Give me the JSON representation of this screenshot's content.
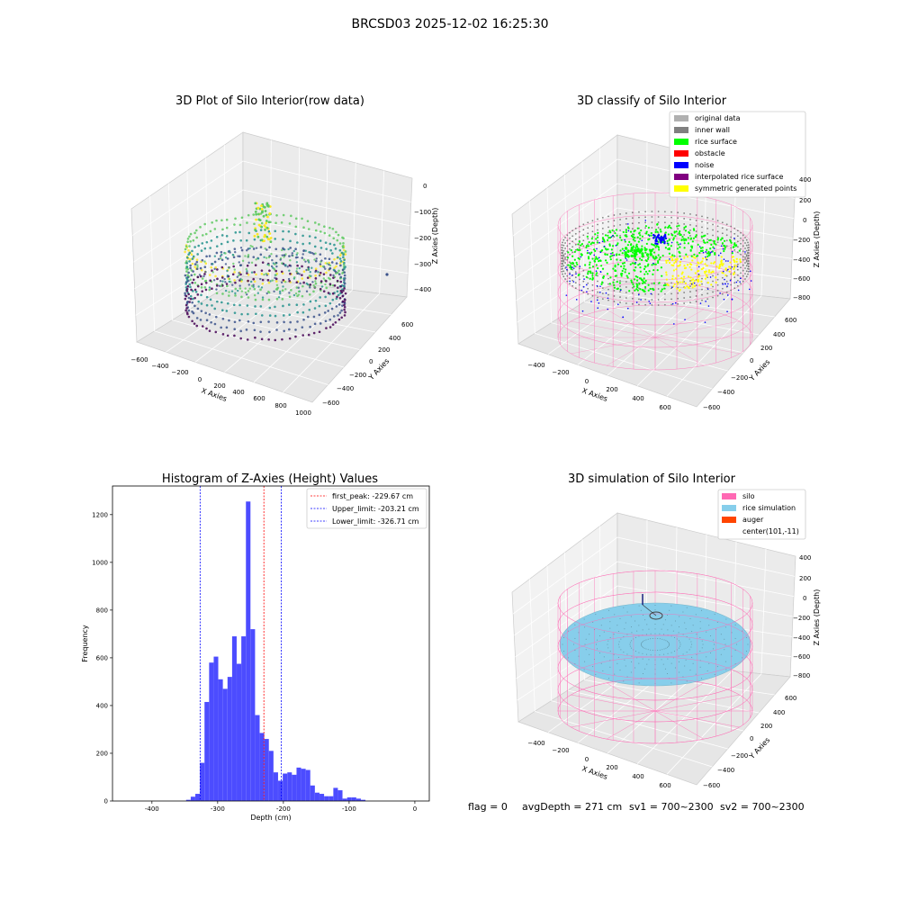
{
  "figure": {
    "suptitle": "BRCSD03 2025-12-02 16:25:30",
    "status": {
      "flag": "flag = 0",
      "avg_depth": "avgDepth = 271 cm",
      "sv1": "sv1 = 700~2300",
      "sv2": "sv2 = 700~2300"
    }
  },
  "chart_data": [
    {
      "type": "scatter",
      "projection": "3d",
      "title": "3D Plot of Silo Interior(row data)",
      "xlabel": "X Axies",
      "ylabel": "Y Axies",
      "zlabel": "Z Axies (Depth)",
      "x_ticks": [
        "−600",
        "−400",
        "−200",
        "0",
        "200",
        "400",
        "600",
        "800",
        "1000"
      ],
      "y_ticks": [
        "−600",
        "−400",
        "−200",
        "0",
        "200",
        "400",
        "600"
      ],
      "z_ticks": [
        "0",
        "−100",
        "−200",
        "−300",
        "−400"
      ],
      "xlim": [
        -600,
        1000
      ],
      "ylim": [
        -600,
        600
      ],
      "zlim": [
        -450,
        0
      ],
      "colormap": [
        "#440154",
        "#3b528b",
        "#21918c",
        "#5ec962",
        "#fde725"
      ]
    },
    {
      "type": "scatter",
      "projection": "3d",
      "title": "3D classify of Silo Interior",
      "xlabel": "X Axies",
      "ylabel": "Y Axies",
      "zlabel": "Z Axies (Depth)",
      "x_ticks": [
        "−400",
        "−200",
        "0",
        "200",
        "400",
        "600"
      ],
      "y_ticks": [
        "−600",
        "−400",
        "−200",
        "0",
        "200",
        "400",
        "600"
      ],
      "z_ticks": [
        "400",
        "200",
        "0",
        "−200",
        "−400",
        "−600",
        "−800"
      ],
      "legend_position": "top-right",
      "legend": [
        {
          "label": "original data",
          "color": "#b0b0b0"
        },
        {
          "label": "inner wall",
          "color": "#808080"
        },
        {
          "label": "rice surface",
          "color": "#00ff00"
        },
        {
          "label": "obstacle",
          "color": "#ff0000"
        },
        {
          "label": "noise",
          "color": "#0000ff"
        },
        {
          "label": "interpolated rice surface",
          "color": "#800080"
        },
        {
          "label": "symmetric generated points",
          "color": "#ffff00"
        }
      ],
      "silo_wireframe_color": "#ff69b4"
    },
    {
      "type": "bar",
      "subtype": "histogram",
      "title": "Histogram of Z-Axies (Height) Values",
      "xlabel": "Depth (cm)",
      "ylabel": "Frequency",
      "xlim": [
        -460,
        22
      ],
      "ylim": [
        0,
        1320
      ],
      "x_ticks": [
        -400,
        -300,
        -200,
        -100,
        0
      ],
      "y_ticks": [
        0,
        200,
        400,
        600,
        800,
        1000,
        1200
      ],
      "bar_color": "#0000ff",
      "bin_width": 6.9,
      "bins": [
        {
          "x": -348,
          "h": 5
        },
        {
          "x": -341,
          "h": 18
        },
        {
          "x": -334,
          "h": 30
        },
        {
          "x": -327,
          "h": 160
        },
        {
          "x": -320,
          "h": 415
        },
        {
          "x": -313,
          "h": 580
        },
        {
          "x": -306,
          "h": 605
        },
        {
          "x": -299,
          "h": 510
        },
        {
          "x": -292,
          "h": 470
        },
        {
          "x": -285,
          "h": 520
        },
        {
          "x": -278,
          "h": 690
        },
        {
          "x": -271,
          "h": 575
        },
        {
          "x": -264,
          "h": 690
        },
        {
          "x": -257,
          "h": 1255
        },
        {
          "x": -250,
          "h": 720
        },
        {
          "x": -243,
          "h": 360
        },
        {
          "x": -236,
          "h": 285
        },
        {
          "x": -229,
          "h": 260
        },
        {
          "x": -222,
          "h": 210
        },
        {
          "x": -215,
          "h": 120
        },
        {
          "x": -208,
          "h": 85
        },
        {
          "x": -201,
          "h": 115
        },
        {
          "x": -194,
          "h": 120
        },
        {
          "x": -187,
          "h": 110
        },
        {
          "x": -180,
          "h": 140
        },
        {
          "x": -173,
          "h": 135
        },
        {
          "x": -166,
          "h": 130
        },
        {
          "x": -159,
          "h": 65
        },
        {
          "x": -152,
          "h": 35
        },
        {
          "x": -145,
          "h": 30
        },
        {
          "x": -138,
          "h": 20
        },
        {
          "x": -131,
          "h": 20
        },
        {
          "x": -124,
          "h": 55
        },
        {
          "x": -117,
          "h": 45
        },
        {
          "x": -110,
          "h": 10
        },
        {
          "x": -103,
          "h": 15
        },
        {
          "x": -96,
          "h": 15
        },
        {
          "x": -89,
          "h": 10
        },
        {
          "x": -82,
          "h": 5
        }
      ],
      "vlines": [
        {
          "label": "first_peak: -229.67 cm",
          "value": -229.67,
          "color": "#ff0000"
        },
        {
          "label": "Upper_limit: -203.21 cm",
          "value": -203.21,
          "color": "#0000ff"
        },
        {
          "label": "Lower_limit: -326.71 cm",
          "value": -326.71,
          "color": "#0000ff"
        }
      ],
      "legend_position": "top-right"
    },
    {
      "type": "scatter",
      "projection": "3d",
      "title": "3D simulation of Silo Interior",
      "xlabel": "X Axies",
      "ylabel": "Y Axies",
      "zlabel": "Z Axies (Depth)",
      "x_ticks": [
        "−400",
        "−200",
        "0",
        "200",
        "400",
        "600"
      ],
      "y_ticks": [
        "−600",
        "−400",
        "−200",
        "0",
        "200",
        "400",
        "600"
      ],
      "z_ticks": [
        "400",
        "200",
        "0",
        "−200",
        "−400",
        "−600",
        "−800"
      ],
      "legend_position": "top-right",
      "legend": [
        {
          "label": "silo",
          "color": "#ff69b4"
        },
        {
          "label": "rice simulation",
          "color": "#87ceeb"
        },
        {
          "label": "auger",
          "color": "#ff4500"
        },
        {
          "label": "center(101,-11)",
          "color": ""
        }
      ]
    }
  ]
}
